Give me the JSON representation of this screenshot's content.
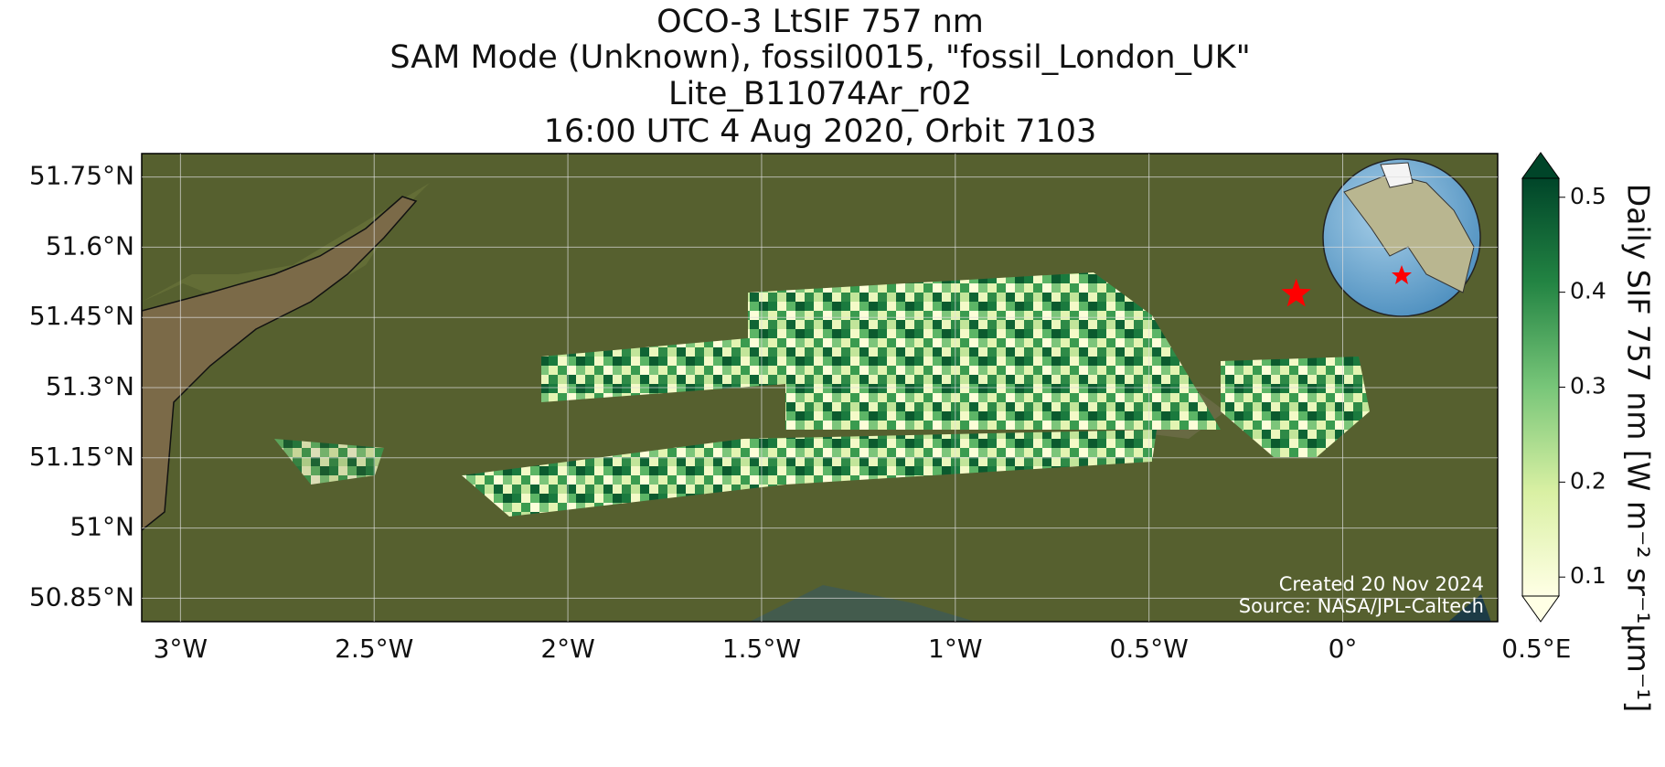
{
  "title": [
    "OCO-3 LtSIF 757 nm",
    "SAM Mode (Unknown), fossil0015, \"fossil_London_UK\"",
    "Lite_B11074Ar_r02",
    "16:00 UTC 4 Aug 2020, Orbit 7103"
  ],
  "map": {
    "xlim": [
      -3.1,
      0.4
    ],
    "ylim": [
      50.8,
      51.8
    ],
    "xticks": [
      {
        "value": -3,
        "label": "3°W"
      },
      {
        "value": -2.5,
        "label": "2.5°W"
      },
      {
        "value": -2,
        "label": "2°W"
      },
      {
        "value": -1.5,
        "label": "1.5°W"
      },
      {
        "value": -1,
        "label": "1°W"
      },
      {
        "value": -0.5,
        "label": "0.5°W"
      },
      {
        "value": 0,
        "label": "0°"
      },
      {
        "value": 0.5,
        "label": "0.5°E"
      }
    ],
    "yticks": [
      {
        "value": 50.85,
        "label": "50.85°N"
      },
      {
        "value": 51,
        "label": "51°N"
      },
      {
        "value": 51.15,
        "label": "51.15°N"
      },
      {
        "value": 51.3,
        "label": "51.3°N"
      },
      {
        "value": 51.45,
        "label": "51.45°N"
      },
      {
        "value": 51.6,
        "label": "51.6°N"
      },
      {
        "value": 51.75,
        "label": "51.75°N"
      }
    ],
    "grid": true,
    "site": {
      "lon": -0.12,
      "lat": 51.5,
      "color": "#ff0000"
    }
  },
  "colorbar": {
    "label": "Daily SIF 757 nm [W m⁻² sr⁻¹μm⁻¹]",
    "lim": [
      0.08,
      0.52
    ],
    "ticks": [
      0.1,
      0.2,
      0.3,
      0.4,
      0.5
    ],
    "colormap": [
      "#ffffe5",
      "#d9f0a3",
      "#78c679",
      "#238443",
      "#004529"
    ]
  },
  "credits": [
    "Created 20 Nov 2024",
    "Source: NASA/JPL-Caltech"
  ]
}
